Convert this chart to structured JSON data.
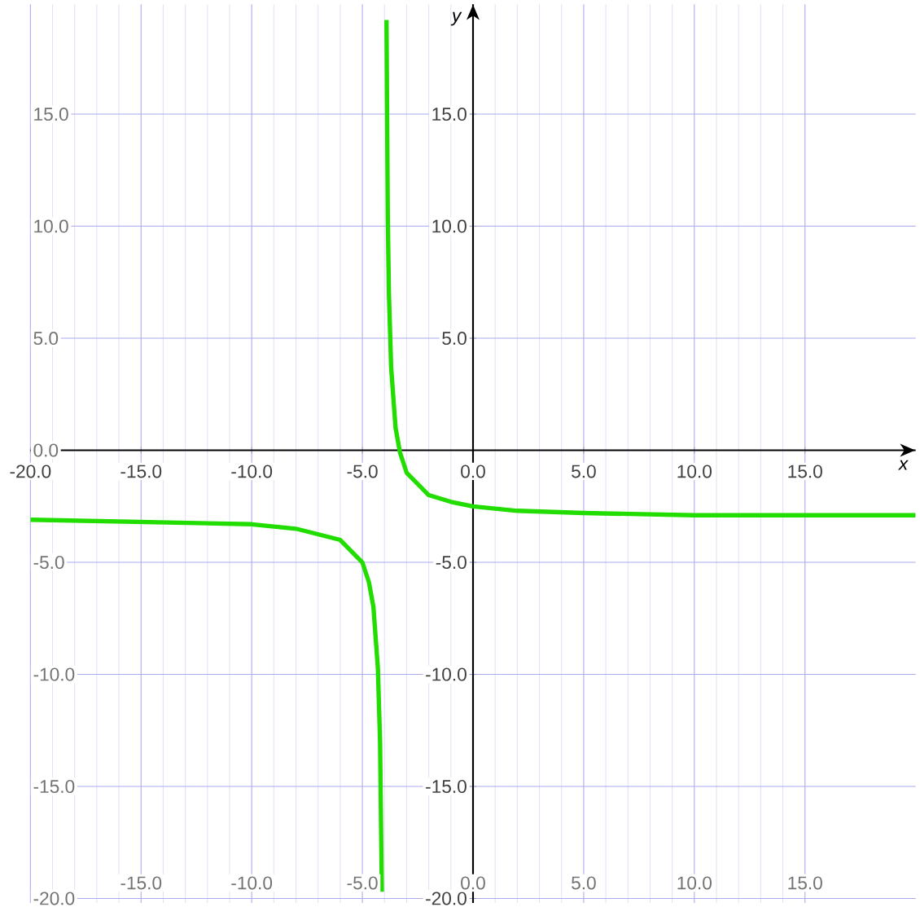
{
  "chart_data": {
    "type": "line",
    "xlabel": "x",
    "ylabel": "y",
    "xlim": [
      -20,
      20
    ],
    "ylim": [
      -20.2,
      19.9
    ],
    "xticks": [
      {
        "value": -20,
        "label": "-20.0"
      },
      {
        "value": -15,
        "label": "-15.0"
      },
      {
        "value": -10,
        "label": "-10.0"
      },
      {
        "value": -5,
        "label": "-5.0"
      },
      {
        "value": 0,
        "label": "0.0"
      },
      {
        "value": 5,
        "label": "5.0"
      },
      {
        "value": 10,
        "label": "10.0"
      },
      {
        "value": 15,
        "label": "15.0"
      }
    ],
    "yticks": [
      {
        "value": 15,
        "label": "15.0"
      },
      {
        "value": 10,
        "label": "10.0"
      },
      {
        "value": 5,
        "label": "5.0"
      },
      {
        "value": -5,
        "label": "-5.0"
      },
      {
        "value": -10,
        "label": "-10.0"
      },
      {
        "value": -15,
        "label": "-15.0"
      },
      {
        "value": -20,
        "label": "-20.0"
      }
    ],
    "x2lim": [
      -20,
      20
    ],
    "x2ticks": [
      {
        "value": -15,
        "label": "-15.0"
      },
      {
        "value": -10,
        "label": "-10.0"
      },
      {
        "value": -5,
        "label": "-5.0"
      },
      {
        "value": 0,
        "label": "0.0"
      },
      {
        "value": 5,
        "label": "5.0"
      },
      {
        "value": 10,
        "label": "10.0"
      },
      {
        "value": 15,
        "label": "15.0"
      }
    ],
    "y2lim": [
      -20.2,
      19.9
    ],
    "y2ticks": [
      {
        "value": 15,
        "label": "15.0"
      },
      {
        "value": 10,
        "label": "10.0"
      },
      {
        "value": 5,
        "label": "5.0"
      },
      {
        "value": 0,
        "label": "0.0"
      },
      {
        "value": -5,
        "label": "-5.0"
      },
      {
        "value": -10,
        "label": "-10.0"
      },
      {
        "value": -15,
        "label": "-15.0"
      },
      {
        "value": -20,
        "label": "-20.0"
      }
    ],
    "grid": true,
    "marker": "none",
    "line_style": "solid",
    "series": [
      {
        "color": "#22dd00",
        "x": [
          -20,
          -15,
          -10,
          -8,
          -6,
          -5,
          -4.7,
          -4.5,
          -4.3,
          -4.2,
          -4.12,
          -4.0,
          -3.91,
          -3.85,
          -3.8,
          -3.7,
          -3.5,
          -3.3,
          -3,
          -2,
          -1,
          0,
          2,
          5,
          10,
          15,
          20
        ],
        "values": [
          -3.1,
          -3.2,
          -3.3,
          -3.5,
          -4,
          -5,
          -5.9,
          -7,
          -9.7,
          -13,
          -19.7,
          null,
          19.2,
          10.3,
          7,
          3.7,
          1,
          -0.1,
          -1,
          -2,
          -2.3,
          -2.5,
          -2.7,
          -2.8,
          -2.9,
          -2.9,
          -2.9
        ]
      }
    ]
  }
}
